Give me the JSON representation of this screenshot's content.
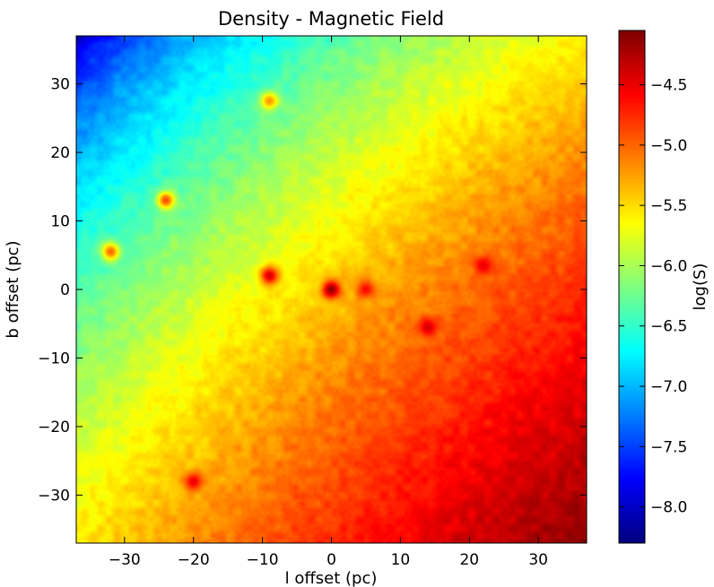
{
  "chart_data": {
    "type": "heatmap",
    "title": "Density - Magnetic Field",
    "xlabel": "l offset (pc)",
    "ylabel": "b offset (pc)",
    "colorbar_label": "log(S)",
    "xlim": [
      -37,
      37
    ],
    "ylim": [
      -37,
      37
    ],
    "x_ticks": [
      -30,
      -20,
      -10,
      0,
      10,
      20,
      30
    ],
    "y_ticks": [
      -30,
      -20,
      -10,
      0,
      10,
      20,
      30
    ],
    "x_tick_labels": [
      "−30",
      "−20",
      "−10",
      "0",
      "10",
      "20",
      "30"
    ],
    "y_tick_labels": [
      "−30",
      "−20",
      "−10",
      "0",
      "10",
      "20",
      "30"
    ],
    "colorbar_range": [
      -8.3,
      -4.05
    ],
    "colorbar_ticks": [
      -8.0,
      -7.5,
      -7.0,
      -6.5,
      -6.0,
      -5.5,
      -5.0,
      -4.5
    ],
    "colorbar_tick_labels": [
      "−8.0",
      "−7.5",
      "−7.0",
      "−6.5",
      "−6.0",
      "−5.5",
      "−5.0",
      "−4.5"
    ],
    "colormap": "jet",
    "grid": false,
    "field": {
      "description": "log(S) rises from about -8.3 at the top-left corner to about -4.2 at the bottom-right corner",
      "corner_values": {
        "top_left": -8.3,
        "top_right": -4.8,
        "bottom_left": -4.9,
        "bottom_right": -4.15
      }
    },
    "features": [
      {
        "x": 0,
        "y": 0,
        "value": -4.1,
        "kind": "point-source"
      },
      {
        "x": -9,
        "y": 2,
        "value": -4.4,
        "kind": "point-source"
      },
      {
        "x": 14,
        "y": -5.5,
        "value": -4.4,
        "kind": "point-source"
      },
      {
        "x": -20,
        "y": -28,
        "value": -4.5,
        "kind": "point-source"
      },
      {
        "x": 22,
        "y": 3.5,
        "value": -4.5,
        "kind": "point-source"
      },
      {
        "x": 29,
        "y": -31,
        "value": -4.2,
        "kind": "point-source"
      },
      {
        "x": -24,
        "y": 13,
        "value": -4.9,
        "kind": "point-source"
      },
      {
        "x": -9,
        "y": 27.5,
        "value": -5.2,
        "kind": "point-source"
      },
      {
        "x": 5,
        "y": 0,
        "value": -4.6,
        "kind": "point-source"
      },
      {
        "x": -32,
        "y": 5.5,
        "value": -5.0,
        "kind": "point-source"
      }
    ]
  }
}
